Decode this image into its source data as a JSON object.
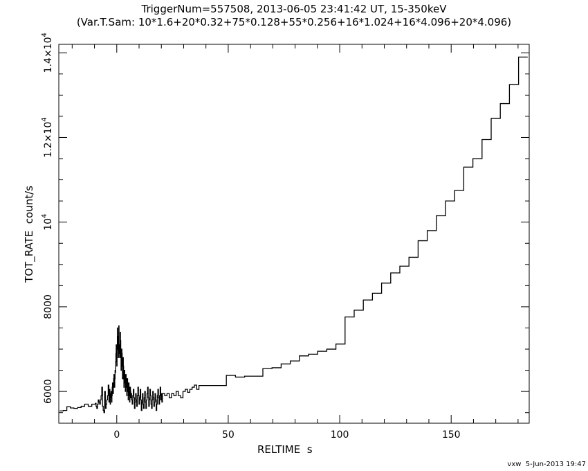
{
  "title": "TriggerNum=557508, 2013-06-05 23:41:42 UT, 15-350keV",
  "subtitle": "(Var.T.Sam: 10*1.6+20*0.32+75*0.128+55*0.256+16*1.024+16*4.096+20*4.096)",
  "footer": "vxw  5-Jun-2013 19:47",
  "chart_data": {
    "type": "line",
    "title": "TriggerNum=557508, 2013-06-05 23:41:42 UT, 15-350keV",
    "subtitle": "(Var.T.Sam: 10*1.6+20*0.32+75*0.128+55*0.256+16*1.024+16*4.096+20*4.096)",
    "xlabel": "RELTIME  s",
    "ylabel": "TOT_RATE  count/s",
    "xlim": [
      -26,
      185
    ],
    "ylim": [
      5250,
      14200
    ],
    "grid": false,
    "xticks": [
      {
        "value": 0,
        "label": "0"
      },
      {
        "value": 50,
        "label": "50"
      },
      {
        "value": 100,
        "label": "100"
      },
      {
        "value": 150,
        "label": "150"
      }
    ],
    "yticks": [
      {
        "value": 6000,
        "base": "6000",
        "exp": ""
      },
      {
        "value": 8000,
        "base": "8000",
        "exp": ""
      },
      {
        "value": 10000,
        "base": "10",
        "exp": "4"
      },
      {
        "value": 12000,
        "base": "1.2×10",
        "exp": "4"
      },
      {
        "value": 14000,
        "base": "1.4×10",
        "exp": "4"
      }
    ],
    "series": [
      {
        "segments": [
          {
            "x0": -25.6,
            "dt": 1.6,
            "values": [
              5540,
              5550,
              5640,
              5610,
              5600,
              5620,
              5650,
              5700,
              5650,
              5700
            ]
          },
          {
            "x0": -9.6,
            "dt": 0.32,
            "values": [
              5720,
              5650,
              5600,
              5700,
              5800,
              5750,
              5700,
              5800,
              5900,
              6100,
              5650,
              5550,
              5500,
              6000,
              5600,
              5700,
              5800,
              5900,
              6150,
              5750
            ]
          },
          {
            "x0": -3.2,
            "dt": 0.128,
            "values": [
              6050,
              5800,
              5700,
              5850,
              5950,
              6000,
              5900,
              5750,
              5900,
              6100,
              6200,
              6000,
              5950,
              6100,
              6300,
              6400,
              6200,
              6100,
              6300,
              6500,
              6450,
              6700,
              6900,
              7100,
              6800,
              6600,
              7000,
              7500,
              7300,
              7000,
              6800,
              7200,
              7550,
              7100,
              6900,
              6800,
              7100,
              7400,
              7200,
              6800,
              6500,
              6700,
              7000,
              6900,
              6600,
              6300,
              6500,
              6800,
              6600,
              6300,
              6100,
              6300,
              6500,
              6400,
              6200,
              6000,
              6200,
              6400,
              6300,
              6100,
              5900,
              6100,
              6300,
              6200,
              6000,
              5800,
              6000,
              6200,
              6100,
              5900,
              5750,
              5950,
              6100,
              6000,
              5850
            ]
          },
          {
            "x0": 6.4,
            "dt": 0.256,
            "values": [
              5950,
              5800,
              5700,
              5900,
              6050,
              5850,
              5600,
              5750,
              5950,
              5800,
              5650,
              5900,
              6100,
              5900,
              5700,
              5850,
              6050,
              5800,
              5550,
              5750,
              5950,
              5700,
              5600,
              5850,
              6000,
              5750,
              5600,
              5800,
              5950,
              6100,
              5850,
              5650,
              5800,
              6050,
              5900,
              5700,
              5600,
              5800,
              6000,
              5850,
              5650,
              5750,
              5950,
              5800,
              5550,
              5700,
              5900,
              6050,
              5850,
              5700,
              5900,
              6100,
              5800,
              5950,
              5750
            ]
          },
          {
            "x0": 20.48,
            "dt": 1.024,
            "values": [
              5950,
              5900,
              5950,
              5850,
              5950,
              5900,
              6000,
              5900,
              5850,
              6000,
              6050,
              5980,
              6050,
              6100,
              6150,
              6050
            ]
          },
          {
            "x0": 36.864,
            "dt": 4.096,
            "values": [
              6140,
              6140,
              6140,
              6380,
              6340,
              6360,
              6360,
              6540,
              6560,
              6650,
              6720,
              6840,
              6880,
              6950,
              7000,
              7120
            ]
          },
          {
            "x0": 102.4,
            "dt": 4.096,
            "values": [
              7760,
              7920,
              8160,
              8320,
              8560,
              8800,
              8960,
              9170,
              9560,
              9800,
              10150,
              10500,
              10750,
              11300,
              11500,
              11950,
              12450,
              12800,
              13250,
              13900
            ]
          }
        ]
      }
    ]
  }
}
